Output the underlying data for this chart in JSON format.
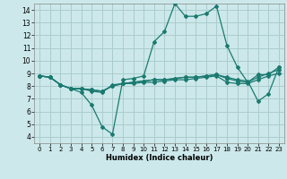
{
  "xlabel": "Humidex (Indice chaleur)",
  "bg_color": "#cce8ea",
  "grid_color": "#aaccce",
  "line_color": "#1a7a70",
  "xlim": [
    -0.5,
    23.5
  ],
  "ylim": [
    3.5,
    14.5
  ],
  "yticks": [
    4,
    5,
    6,
    7,
    8,
    9,
    10,
    11,
    12,
    13,
    14
  ],
  "xticks": [
    0,
    1,
    2,
    3,
    4,
    5,
    6,
    7,
    8,
    9,
    10,
    11,
    12,
    13,
    14,
    15,
    16,
    17,
    18,
    19,
    20,
    21,
    22,
    23
  ],
  "series1_x": [
    0,
    1,
    2,
    3,
    4,
    5,
    6,
    7,
    8,
    9,
    10,
    11,
    12,
    13,
    14,
    15,
    16,
    17,
    18,
    19,
    20,
    21,
    22,
    23
  ],
  "series1_y": [
    8.8,
    8.7,
    8.1,
    7.8,
    7.5,
    6.5,
    4.8,
    4.2,
    8.5,
    8.6,
    8.8,
    11.5,
    12.3,
    14.5,
    13.5,
    13.5,
    13.7,
    14.3,
    11.2,
    9.5,
    8.3,
    8.9,
    8.9,
    9.5
  ],
  "series2_x": [
    0,
    1,
    2,
    3,
    4,
    5,
    6,
    7,
    8,
    9,
    10,
    11,
    12,
    13,
    14,
    15,
    16,
    17,
    18,
    19,
    20,
    21,
    22,
    23
  ],
  "series2_y": [
    8.8,
    8.7,
    8.1,
    7.8,
    7.8,
    7.6,
    7.5,
    8.1,
    8.2,
    8.2,
    8.3,
    8.3,
    8.4,
    8.5,
    8.5,
    8.6,
    8.7,
    8.8,
    8.3,
    8.2,
    8.2,
    8.5,
    8.8,
    9.0
  ],
  "series3_x": [
    0,
    1,
    2,
    3,
    4,
    5,
    6,
    7,
    8,
    9,
    10,
    11,
    12,
    13,
    14,
    15,
    16,
    17,
    18,
    19,
    20,
    21,
    22,
    23
  ],
  "series3_y": [
    8.8,
    8.7,
    8.1,
    7.8,
    7.8,
    7.7,
    7.6,
    8.0,
    8.2,
    8.3,
    8.4,
    8.5,
    8.5,
    8.6,
    8.7,
    8.7,
    8.8,
    8.9,
    8.6,
    8.4,
    8.3,
    8.7,
    9.0,
    9.3
  ],
  "series4_x": [
    0,
    1,
    2,
    3,
    4,
    5,
    6,
    7,
    8,
    9,
    10,
    11,
    12,
    13,
    14,
    15,
    16,
    17,
    18,
    19,
    20,
    21,
    22,
    23
  ],
  "series4_y": [
    8.8,
    8.7,
    8.1,
    7.8,
    7.8,
    7.7,
    7.6,
    8.0,
    8.2,
    8.3,
    8.4,
    8.5,
    8.5,
    8.6,
    8.7,
    8.7,
    8.8,
    8.9,
    8.7,
    8.5,
    8.4,
    6.8,
    7.4,
    9.5
  ]
}
